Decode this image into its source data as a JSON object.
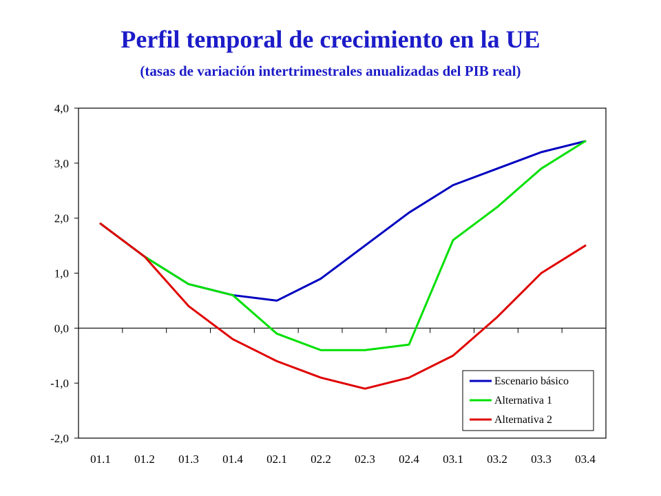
{
  "chart_data": {
    "type": "line",
    "title": "Perfil temporal de crecimiento en la UE",
    "subtitle": "(tasas de variación intertrimestrales anualizadas del PIB real)",
    "categories": [
      "01.1",
      "01.2",
      "01.3",
      "01.4",
      "02.1",
      "02.2",
      "02.3",
      "02.4",
      "03.1",
      "03.2",
      "03.3",
      "03.4"
    ],
    "ylim": [
      -2.0,
      4.0
    ],
    "yticks": [
      4.0,
      3.0,
      2.0,
      1.0,
      0.0,
      -1.0,
      -2.0
    ],
    "ytick_labels": [
      "4,0",
      "3,0",
      "2,0",
      "1,0",
      "0,0",
      "-1,0",
      "-2,0"
    ],
    "grid": false,
    "legend_position": "bottom-right",
    "series": [
      {
        "name": "Escenario básico",
        "color": "#0000c0",
        "values": [
          1.9,
          1.3,
          0.8,
          0.6,
          0.5,
          0.9,
          1.5,
          2.1,
          2.6,
          2.9,
          3.2,
          3.4
        ]
      },
      {
        "name": "Alternativa 1",
        "color": "#00e000",
        "values": [
          1.9,
          1.3,
          0.8,
          0.6,
          -0.1,
          -0.4,
          -0.4,
          -0.3,
          1.6,
          2.2,
          2.9,
          3.4
        ]
      },
      {
        "name": "Alternativa 2",
        "color": "#e00000",
        "values": [
          1.9,
          1.3,
          0.4,
          -0.2,
          -0.6,
          -0.9,
          -1.1,
          -0.9,
          -0.5,
          0.2,
          1.0,
          1.5
        ]
      }
    ]
  }
}
